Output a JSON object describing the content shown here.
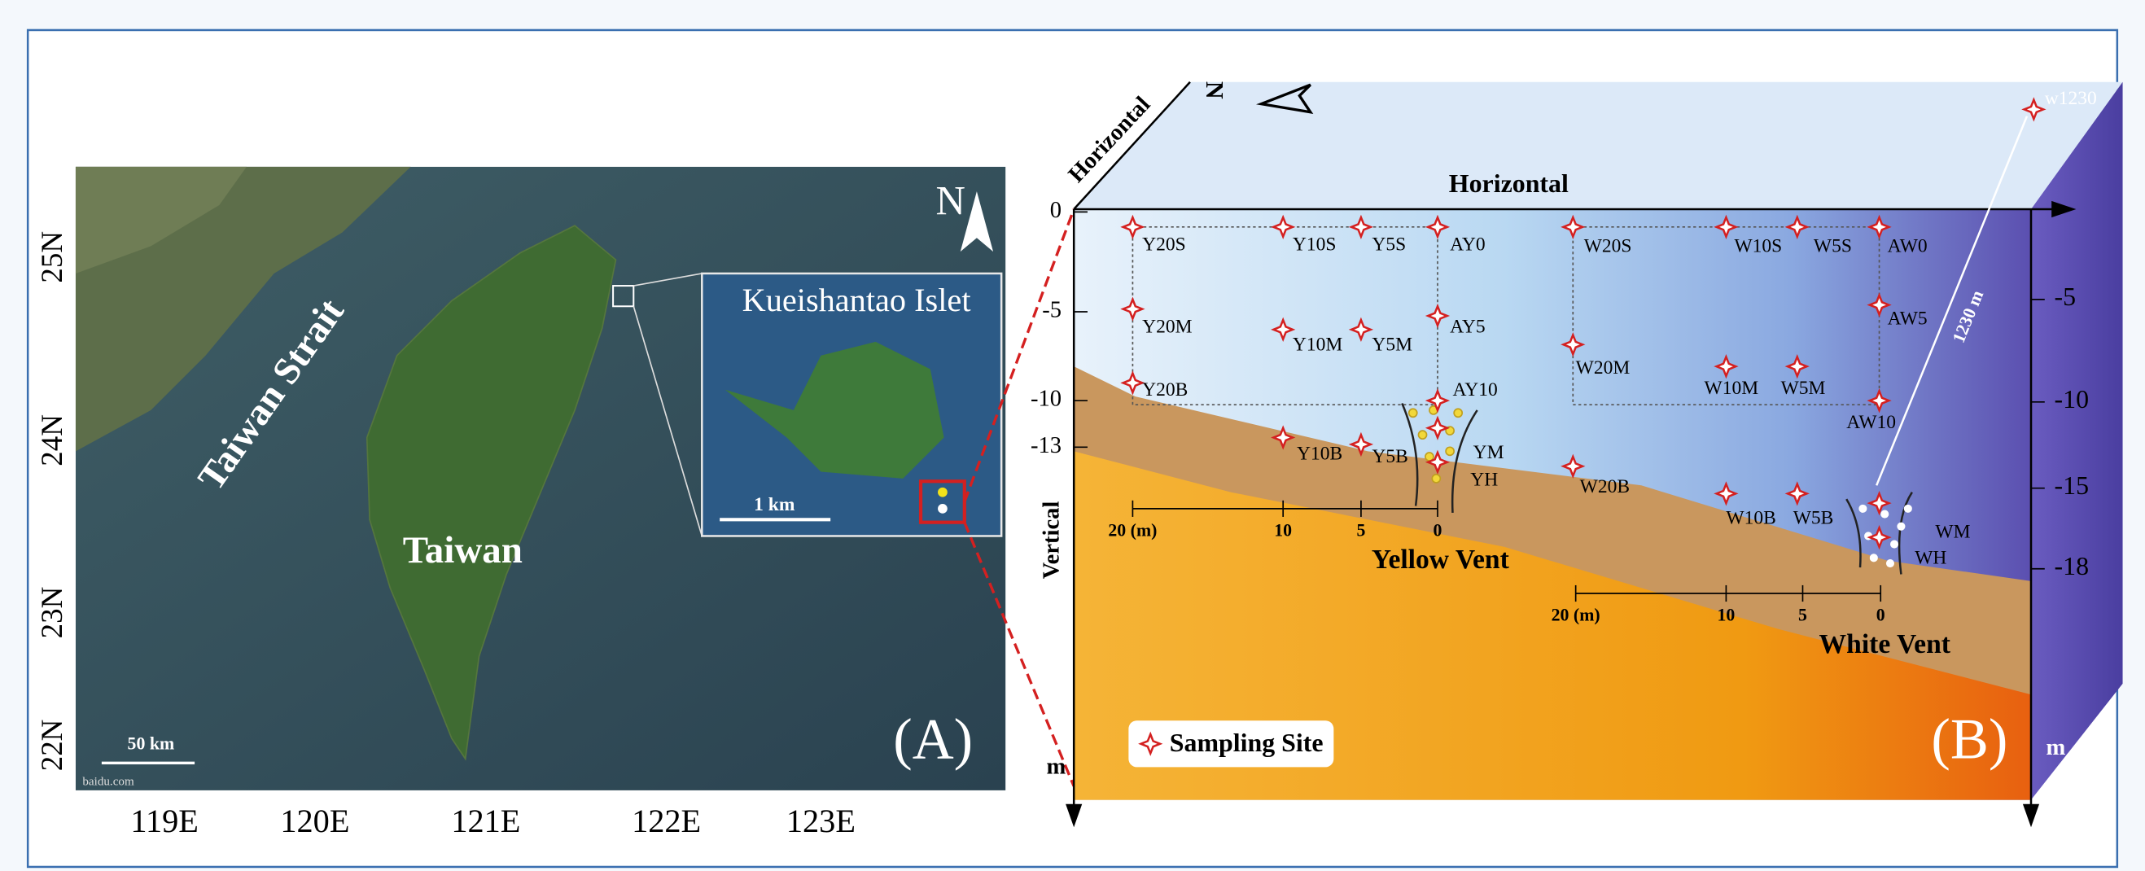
{
  "panel_a": {
    "north": "N",
    "strait": "Taiwan Strait",
    "island": "Taiwan",
    "inset_title": "Kueishantao Islet",
    "inset_scale": "1 km",
    "map_scale": "50 km",
    "source": "baidu.com",
    "label": "(A)",
    "latitudes": [
      "25N",
      "24N",
      "23N",
      "22N"
    ],
    "longitudes": [
      "119E",
      "120E",
      "121E",
      "122E",
      "123E"
    ]
  },
  "panel_b": {
    "top_axis": "Horizontal",
    "side_axis": "Horizontal",
    "north": "N",
    "vertical": "Vertical",
    "left_depths": [
      "0",
      "-5",
      "-10",
      "-13"
    ],
    "right_depths": [
      "-5",
      "-10",
      "-15",
      "-18"
    ],
    "unit_left": "m",
    "unit_right": "m",
    "sites": [
      "Y20S",
      "Y10S",
      "Y5S",
      "AY0",
      "Y20M",
      "Y10M",
      "Y5M",
      "AY5",
      "Y20B",
      "AY10",
      "Y10B",
      "Y5B",
      "YM",
      "YH",
      "W20S",
      "W10S",
      "W5S",
      "AW0",
      "AW5",
      "W20M",
      "W10M",
      "W5M",
      "AW10",
      "W20B",
      "W10B",
      "W5B",
      "WM",
      "WH",
      "w1230"
    ],
    "yellow_scale": [
      "20 (m)",
      "10",
      "5",
      "0"
    ],
    "white_scale": [
      "20 (m)",
      "10",
      "5",
      "0"
    ],
    "yellow_vent": "Yellow Vent",
    "white_vent": "White Vent",
    "distance": "1230 m",
    "legend": "Sampling Site",
    "label": "(B)"
  }
}
